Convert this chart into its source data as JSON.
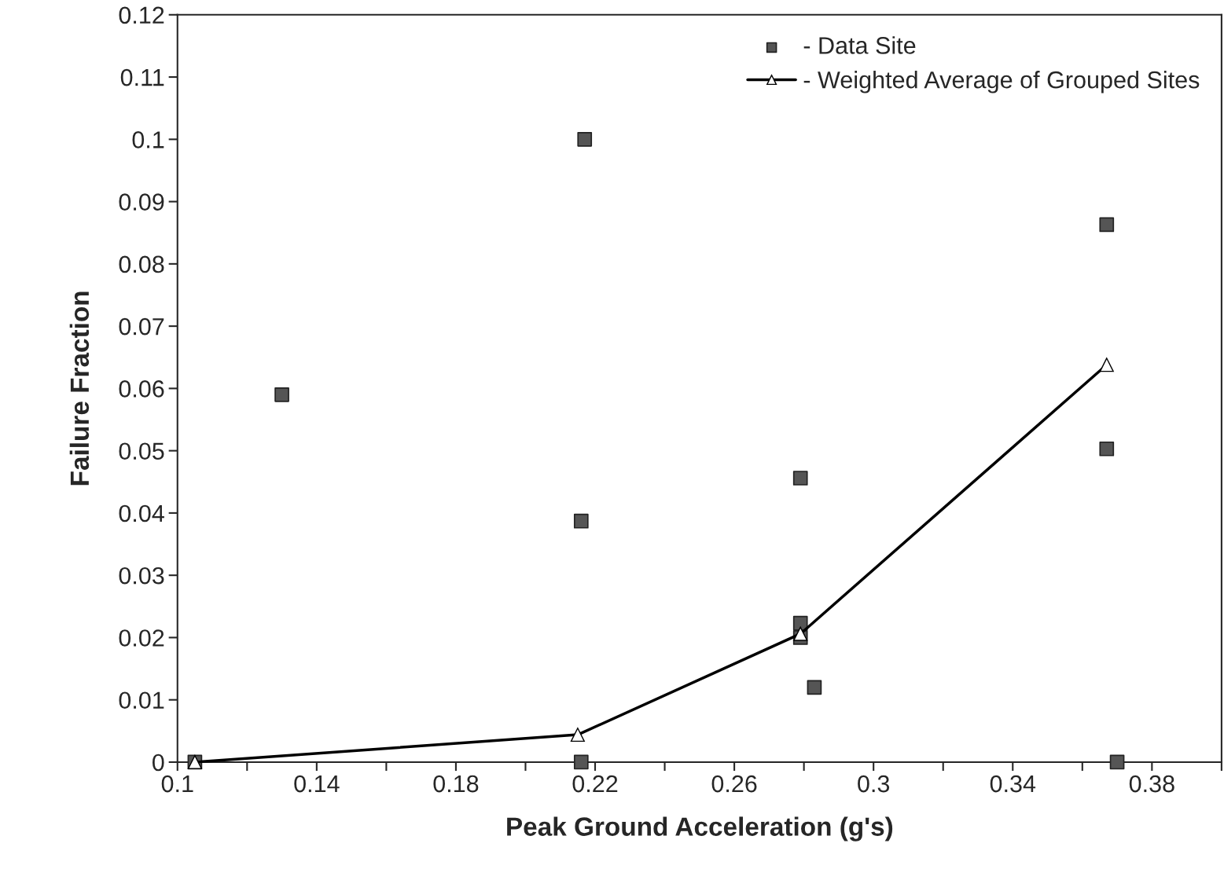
{
  "chart_data": {
    "type": "scatter",
    "xlabel": "Peak Ground Acceleration (g's)",
    "ylabel": "Failure Fraction",
    "xlim": [
      0.1,
      0.4
    ],
    "ylim": [
      0,
      0.12
    ],
    "xticks": [
      0.1,
      {
        "value": 0.12,
        "label": null
      },
      0.14,
      {
        "value": 0.16,
        "label": null
      },
      0.18,
      {
        "value": 0.2,
        "label": null
      },
      0.22,
      {
        "value": 0.24,
        "label": null
      },
      0.26,
      {
        "value": 0.28,
        "label": null
      },
      0.3,
      {
        "value": 0.32,
        "label": null
      },
      0.34,
      {
        "value": 0.36,
        "label": null
      },
      0.38,
      {
        "value": 0.4,
        "label": null
      }
    ],
    "yticks": [
      0,
      0.01,
      0.02,
      0.03,
      0.04,
      0.05,
      0.06,
      0.07,
      0.08,
      0.09,
      0.1,
      0.11,
      0.12
    ],
    "grid": false,
    "legend": "top right",
    "series": [
      {
        "name": "- Data Site",
        "marker": "square",
        "color": "#555555",
        "x": [
          0.105,
          0.13,
          0.217,
          0.216,
          0.216,
          0.279,
          0.279,
          0.279,
          0.283,
          0.367,
          0.367,
          0.37
        ],
        "values": [
          0,
          0.059,
          0.1,
          0.0387,
          0,
          0.0456,
          0.0223,
          0.02,
          0.012,
          0.0863,
          0.0503,
          0
        ]
      },
      {
        "name": "- Weighted Average of Grouped Sites",
        "type": "line",
        "marker": "triangle",
        "line_style": "solid",
        "color": "#000000",
        "x": [
          0.105,
          0.215,
          0.279,
          0.367
        ],
        "values": [
          0,
          0.0044,
          0.0206,
          0.0638
        ]
      }
    ]
  }
}
